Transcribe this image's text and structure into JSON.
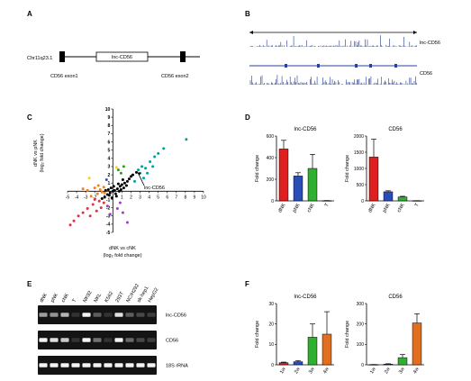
{
  "panels": {
    "A": {
      "label": "A",
      "locus": "Chr11q23.1",
      "box_label": "lnc-CD56",
      "exon1": "CD56 exon1",
      "exon2": "CD56 exon2"
    },
    "B": {
      "label": "B",
      "track1": "lnc-CD56",
      "track2": "CD56"
    },
    "C": {
      "label": "C",
      "annotation": "lnc-CD56",
      "ylabel_line1": "dNK vs pNK",
      "ylabel_line2": "(log₂ fold change)",
      "xlabel_line1": "dNK vs cNK",
      "xlabel_line2": "(log₂ fold change)"
    },
    "D": {
      "label": "D"
    },
    "E": {
      "label": "E",
      "lanes": [
        "dNK",
        "pNK",
        "cNK",
        "T",
        "NK92",
        "NKL",
        "K562",
        "293T",
        "NCIH292",
        "sk-hep1",
        "HepG2"
      ],
      "rows": [
        "lnc-CD56",
        "CD56",
        "18S rRNA"
      ],
      "bands": [
        [
          0.55,
          0.5,
          0.65,
          0.05,
          0.95,
          0.25,
          0.05,
          0.85,
          0.25,
          0.15,
          0.1
        ],
        [
          0.95,
          0.85,
          0.75,
          0.05,
          0.95,
          0.35,
          0.05,
          0.95,
          0.3,
          0.15,
          0.1
        ],
        [
          0.95,
          0.95,
          0.95,
          0.95,
          0.95,
          0.95,
          0.95,
          0.95,
          0.95,
          0.95,
          0.95
        ]
      ]
    },
    "F": {
      "label": "F"
    }
  },
  "chart_data": [
    {
      "id": "C",
      "type": "scatter",
      "xlim": [
        -5,
        10
      ],
      "ylim": [
        -5,
        10
      ],
      "x_ticks": [
        -5,
        -4,
        -3,
        -2,
        -1,
        1,
        2,
        3,
        4,
        5,
        6,
        7,
        8,
        9,
        10
      ],
      "y_ticks": [
        -5,
        -4,
        -3,
        -2,
        -1,
        1,
        2,
        3,
        4,
        5,
        6,
        7,
        8,
        9,
        10
      ],
      "grid": false,
      "highlight": [
        2.6,
        2.3
      ],
      "points": [
        [
          0.2,
          0.1,
          "#000000"
        ],
        [
          0.5,
          0.3,
          "#000000"
        ],
        [
          -0.3,
          -0.2,
          "#000000"
        ],
        [
          0.8,
          0.6,
          "#000000"
        ],
        [
          -0.6,
          -0.4,
          "#000000"
        ],
        [
          1.0,
          0.8,
          "#000000"
        ],
        [
          0.3,
          -0.3,
          "#000000"
        ],
        [
          -0.2,
          0.4,
          "#000000"
        ],
        [
          1.3,
          1.0,
          "#000000"
        ],
        [
          0.6,
          0.9,
          "#000000"
        ],
        [
          -0.9,
          -0.7,
          "#000000"
        ],
        [
          1.6,
          1.2,
          "#000000"
        ],
        [
          0.1,
          0.6,
          "#000000"
        ],
        [
          -0.5,
          0.2,
          "#000000"
        ],
        [
          0.9,
          0.2,
          "#000000"
        ],
        [
          1.8,
          1.5,
          "#000000"
        ],
        [
          -1.2,
          -0.9,
          "#000000"
        ],
        [
          0.4,
          -0.6,
          "#000000"
        ],
        [
          1.1,
          1.4,
          "#000000"
        ],
        [
          -0.1,
          -0.8,
          "#000000"
        ],
        [
          2.0,
          1.8,
          "#000000"
        ],
        [
          0.7,
          0.0,
          "#000000"
        ],
        [
          -0.8,
          0.1,
          "#000000"
        ],
        [
          1.5,
          0.7,
          "#000000"
        ],
        [
          0.0,
          0.0,
          "#000000"
        ],
        [
          2.2,
          2.0,
          "#000000"
        ],
        [
          1.2,
          0.4,
          "#000000"
        ],
        [
          -0.4,
          -0.5,
          "#000000"
        ],
        [
          2.6,
          2.3,
          "#000000"
        ],
        [
          2.8,
          2.6,
          "#00a0a0"
        ],
        [
          3.2,
          3.0,
          "#00a0a0"
        ],
        [
          3.6,
          2.8,
          "#00a0a0"
        ],
        [
          4.1,
          3.6,
          "#00a0a0"
        ],
        [
          4.6,
          4.2,
          "#00a0a0"
        ],
        [
          5.0,
          4.6,
          "#00a0a0"
        ],
        [
          5.6,
          5.2,
          "#00a0a0"
        ],
        [
          3.0,
          2.2,
          "#00a0a0"
        ],
        [
          3.4,
          1.6,
          "#00a0a0"
        ],
        [
          2.4,
          1.2,
          "#00a0a0"
        ],
        [
          3.8,
          2.2,
          "#00a0a0"
        ],
        [
          4.4,
          3.0,
          "#00a0a0"
        ],
        [
          8.1,
          6.3,
          "#00a0a0"
        ],
        [
          0.9,
          2.2,
          "#20a020"
        ],
        [
          1.2,
          3.0,
          "#20a020"
        ],
        [
          0.6,
          2.6,
          "#20a020"
        ],
        [
          -1.0,
          0.5,
          "#f08020"
        ],
        [
          -1.4,
          0.2,
          "#f08020"
        ],
        [
          -1.7,
          -0.3,
          "#f08020"
        ],
        [
          -2.0,
          0.4,
          "#f08020"
        ],
        [
          -1.2,
          -0.1,
          "#f08020"
        ],
        [
          -2.4,
          -0.6,
          "#f08020"
        ],
        [
          -1.6,
          0.7,
          "#f08020"
        ],
        [
          -0.9,
          -0.2,
          "#f08020"
        ],
        [
          -3.3,
          0.3,
          "#f08020"
        ],
        [
          -2.8,
          0.1,
          "#f08020"
        ],
        [
          -1.5,
          -1.2,
          "#e03040"
        ],
        [
          -2.2,
          -1.6,
          "#e03040"
        ],
        [
          -2.8,
          -2.1,
          "#e03040"
        ],
        [
          -3.3,
          -2.6,
          "#e03040"
        ],
        [
          -3.8,
          -3.0,
          "#e03040"
        ],
        [
          -4.3,
          -3.6,
          "#e03040"
        ],
        [
          -4.7,
          -4.1,
          "#e03040"
        ],
        [
          -1.8,
          -2.4,
          "#e03040"
        ],
        [
          -2.5,
          -3.0,
          "#e03040"
        ],
        [
          -1.3,
          -2.0,
          "#e03040"
        ],
        [
          -1.0,
          -1.4,
          "#e03040"
        ],
        [
          -2.0,
          -1.0,
          "#e03040"
        ],
        [
          -0.6,
          -1.8,
          "#a040c0"
        ],
        [
          0.5,
          -2.1,
          "#a040c0"
        ],
        [
          1.1,
          -2.6,
          "#a040c0"
        ],
        [
          -0.3,
          -2.8,
          "#a040c0"
        ],
        [
          0.8,
          -1.4,
          "#a040c0"
        ],
        [
          1.6,
          -3.8,
          "#a040c0"
        ],
        [
          -2.6,
          1.6,
          "#f0d020"
        ],
        [
          0.4,
          2.9,
          "#f0d020"
        ],
        [
          -0.7,
          1.4,
          "#3050c0"
        ]
      ]
    },
    {
      "id": "D1",
      "type": "bar",
      "title": "lnc-CD56",
      "ylabel": "Fold change",
      "categories": [
        "dNK",
        "pNK",
        "cNK",
        "T"
      ],
      "values": [
        480,
        230,
        300,
        2
      ],
      "errors": [
        80,
        30,
        130,
        1
      ],
      "colors": [
        "#e02020",
        "#2a4db8",
        "#30b030",
        "#e07020"
      ],
      "ylim": [
        0,
        600
      ],
      "yticks": [
        0,
        200,
        400,
        600
      ]
    },
    {
      "id": "D2",
      "type": "bar",
      "title": "CD56",
      "ylabel": "Fold change",
      "categories": [
        "dNK",
        "pNK",
        "cNK",
        "T"
      ],
      "values": [
        1350,
        280,
        120,
        5
      ],
      "errors": [
        550,
        30,
        20,
        2
      ],
      "colors": [
        "#e02020",
        "#2a4db8",
        "#30b030",
        "#e07020"
      ],
      "ylim": [
        0,
        2000
      ],
      "yticks": [
        0,
        500,
        1000,
        1500,
        2000
      ]
    },
    {
      "id": "F1",
      "type": "bar",
      "title": "lnc-CD56",
      "ylabel": "Fold change",
      "categories": [
        "1w",
        "2w",
        "3w",
        "4w"
      ],
      "values": [
        1,
        1.5,
        13.5,
        15
      ],
      "errors": [
        0.3,
        0.5,
        6.5,
        11
      ],
      "colors": [
        "#e02020",
        "#2a4db8",
        "#30b030",
        "#e07020"
      ],
      "ylim": [
        0,
        30
      ],
      "yticks": [
        0,
        10,
        20,
        30
      ]
    },
    {
      "id": "F2",
      "type": "bar",
      "title": "CD56",
      "ylabel": "Fold change",
      "categories": [
        "1w",
        "2w",
        "3w",
        "4w"
      ],
      "values": [
        1,
        3,
        35,
        205
      ],
      "errors": [
        0.5,
        2,
        15,
        45
      ],
      "colors": [
        "#e02020",
        "#2a4db8",
        "#30b030",
        "#e07020"
      ],
      "ylim": [
        0,
        300
      ],
      "yticks": [
        0,
        100,
        200,
        300
      ]
    }
  ]
}
